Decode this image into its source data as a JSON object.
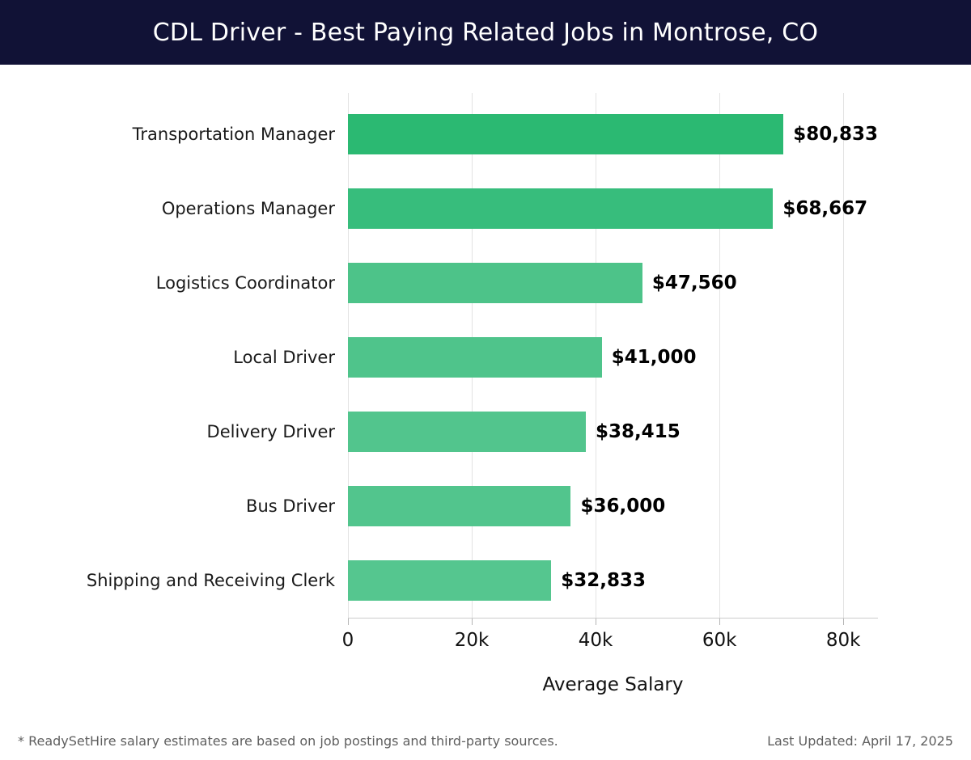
{
  "header": {
    "title": "CDL Driver - Best Paying Related Jobs in Montrose, CO",
    "bg_color": "#111236",
    "text_color": "#ffffff"
  },
  "chart_data": {
    "type": "bar",
    "orientation": "horizontal",
    "title": "CDL Driver - Best Paying Related Jobs in Montrose, CO",
    "categories": [
      "Transportation Manager",
      "Operations Manager",
      "Logistics Coordinator",
      "Local Driver",
      "Delivery Driver",
      "Bus Driver",
      "Shipping and Receiving Clerk"
    ],
    "values": [
      80833,
      68667,
      47560,
      41000,
      38415,
      36000,
      32833
    ],
    "value_labels": [
      "$80,833",
      "$68,667",
      "$47,560",
      "$41,000",
      "$38,415",
      "$36,000",
      "$32,833"
    ],
    "bar_colors": [
      "#2bb972",
      "#37bd7c",
      "#4dc389",
      "#4fc48b",
      "#52c58d",
      "#52c58d",
      "#55c68f"
    ],
    "xlabel": "Average Salary",
    "ylabel": "",
    "xlim": [
      0,
      85600
    ],
    "x_ticks": [
      {
        "value": 0,
        "label": "0"
      },
      {
        "value": 20000,
        "label": "20k"
      },
      {
        "value": 40000,
        "label": "40k"
      },
      {
        "value": 60000,
        "label": "60k"
      },
      {
        "value": 80000,
        "label": "80k"
      }
    ],
    "grid": "vertical",
    "gridline_color": "#e3e3e3",
    "legend": "none"
  },
  "footer": {
    "disclaimer": "* ReadySetHire salary estimates are based on job postings and third-party sources.",
    "last_updated": "Last Updated: April 17, 2025"
  }
}
